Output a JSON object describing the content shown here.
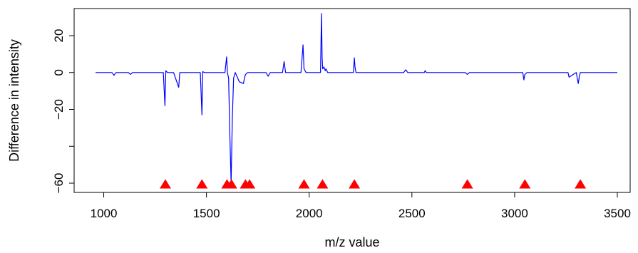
{
  "chart_data": {
    "type": "line",
    "title": "",
    "xlabel": "m/z value",
    "ylabel": "Difference in intensity",
    "xlim": [
      960,
      3500
    ],
    "ylim": [
      -60,
      32
    ],
    "grid": false,
    "legend": "none",
    "x_ticks": [
      1000,
      1500,
      2000,
      2500,
      3000,
      3500
    ],
    "x_tick_labels": [
      "1000",
      "1500",
      "2000",
      "2500",
      "3000",
      "3500"
    ],
    "y_ticks": [
      -60,
      -40,
      -20,
      0,
      20
    ],
    "y_tick_labels": [
      "−60",
      "",
      "−20",
      "0",
      "20"
    ],
    "series": [
      {
        "color": "#0000ff",
        "x": [
          960,
          1040,
          1050,
          1060,
          1120,
          1130,
          1140,
          1290,
          1298,
          1302,
          1310,
          1340,
          1365,
          1370,
          1380,
          1470,
          1478,
          1482,
          1490,
          1560,
          1590,
          1598,
          1602,
          1608,
          1614,
          1620,
          1626,
          1632,
          1640,
          1660,
          1680,
          1685,
          1690,
          1700,
          1790,
          1800,
          1810,
          1870,
          1878,
          1885,
          1960,
          1970,
          1975,
          1985,
          2055,
          2060,
          2063,
          2066,
          2072,
          2078,
          2082,
          2090,
          2215,
          2220,
          2223,
          2228,
          2260,
          2460,
          2470,
          2480,
          2560,
          2565,
          2570,
          2760,
          2770,
          2780,
          2840,
          3040,
          3045,
          3050,
          3060,
          3260,
          3265,
          3300,
          3310,
          3315,
          3320,
          3380,
          3500
        ],
        "y": [
          0,
          0,
          -1.5,
          0,
          0,
          -1,
          0,
          0,
          -18,
          1,
          0,
          0,
          -8,
          0,
          0,
          0,
          -23,
          0.5,
          0,
          0,
          0,
          8.5,
          0,
          -3,
          -35,
          -60,
          -25,
          -3,
          0,
          -5,
          -6,
          -3,
          -1,
          0,
          0,
          -2,
          0,
          0,
          6,
          0,
          0,
          15,
          2,
          0,
          0,
          32,
          8,
          2,
          3,
          1,
          2,
          0,
          0,
          8,
          3,
          0,
          0,
          0,
          1.5,
          0,
          0,
          1,
          0,
          0,
          -1,
          0,
          0,
          0,
          -4,
          -1,
          0,
          0,
          -2.5,
          0,
          -6,
          -2,
          0,
          0,
          0
        ]
      }
    ],
    "marker_x": [
      1300,
      1478,
      1600,
      1622,
      1690,
      1710,
      1975,
      2065,
      2220,
      2770,
      3050,
      3320
    ],
    "marker_y": -61,
    "marker_color": "#ff0000"
  }
}
